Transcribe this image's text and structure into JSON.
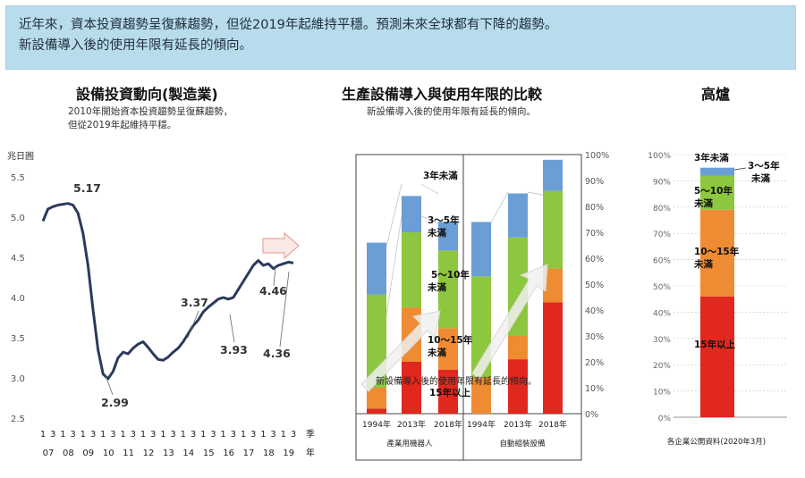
{
  "banner": {
    "line1": "近年來，資本投資趨勢呈復蘇趨勢，但從2019年起維持平穩。預測未來全球都有下降的趨勢。",
    "line2": "新設備導入後的使用年限有延長的傾向。"
  },
  "chart_data": [
    {
      "type": "line",
      "title": "設備投資動向(製造業)",
      "subtitle_lines": [
        "2010年開始資本投資趨勢呈復蘇趨勢，",
        "但從2019年起維持平穩。"
      ],
      "ylabel": "兆日圓",
      "xlabel": "季",
      "xlabel2": "年",
      "ylim": [
        2.5,
        5.5
      ],
      "yticks": [
        "5.5",
        "5.0",
        "4.5",
        "4.0",
        "3.5",
        "3.0",
        "2.5"
      ],
      "quarter_labels": [
        "1",
        "3",
        "1",
        "3",
        "1",
        "3",
        "1",
        "3",
        "1",
        "3",
        "1",
        "3",
        "1",
        "3",
        "1",
        "3",
        "1",
        "3",
        "1",
        "3",
        "1",
        "3",
        "1",
        "3",
        "1",
        "3"
      ],
      "year_labels": [
        "07",
        "08",
        "09",
        "10",
        "11",
        "12",
        "13",
        "14",
        "15",
        "16",
        "17",
        "18",
        "19"
      ],
      "x": [
        0,
        0.5,
        1,
        1.5,
        2,
        2.5,
        3,
        3.5,
        4,
        4.5,
        5,
        5.5,
        6,
        6.5,
        7,
        7.5,
        8,
        8.5,
        9,
        9.5,
        10,
        10.5,
        11,
        11.5,
        12,
        12.5,
        13,
        13.5,
        14,
        14.5,
        15,
        15.5,
        16,
        16.5,
        17,
        17.5,
        18,
        18.5,
        19,
        19.5,
        20,
        20.5,
        21,
        21.5,
        22,
        22.5,
        23,
        23.5,
        24,
        24.5,
        25
      ],
      "y": [
        4.95,
        5.1,
        5.13,
        5.15,
        5.16,
        5.17,
        5.15,
        5.05,
        4.8,
        4.4,
        3.85,
        3.35,
        3.05,
        2.99,
        3.08,
        3.25,
        3.32,
        3.3,
        3.37,
        3.42,
        3.45,
        3.38,
        3.3,
        3.23,
        3.22,
        3.26,
        3.32,
        3.37,
        3.45,
        3.55,
        3.65,
        3.72,
        3.82,
        3.88,
        3.93,
        3.98,
        4.0,
        3.98,
        4.0,
        4.1,
        4.2,
        4.3,
        4.4,
        4.46,
        4.4,
        4.42,
        4.36,
        4.4,
        4.42,
        4.44,
        4.43
      ],
      "annotations": [
        "5.17",
        "2.99",
        "3.37",
        "3.93",
        "4.46",
        "4.36"
      ],
      "line_color": "#2b3a5c"
    },
    {
      "type": "bar",
      "stacked": true,
      "title": "生產設備導入與使用年限的比較",
      "subtitle": "新設備導入後的使用年限有延長的傾向。",
      "categories": [
        "1994年",
        "2013年",
        "2018年",
        "1994年",
        "2013年",
        "2018年"
      ],
      "groups": [
        "產業用機器人",
        "自動組裝設備"
      ],
      "ylim": [
        0,
        100
      ],
      "yticks": [
        "100%",
        "90%",
        "80%",
        "70%",
        "60%",
        "50%",
        "40%",
        "30%",
        "20%",
        "10%",
        "0%"
      ],
      "series": [
        {
          "name": "15年以上",
          "color": "#e0281e",
          "values": [
            2,
            20,
            17,
            0,
            21,
            43
          ]
        },
        {
          "name": "10～15年未滿",
          "color": "#ef8b33",
          "values": [
            8,
            21,
            16,
            14,
            9,
            13
          ]
        },
        {
          "name": "5～10年未滿",
          "color": "#8dc63f",
          "values": [
            36,
            29,
            30,
            39,
            38,
            30
          ]
        },
        {
          "name": "3～5年未滿",
          "color": "#6b9ed6",
          "values": [
            20,
            14,
            11,
            21,
            17,
            12
          ]
        },
        {
          "name": "3年未滿",
          "color": "#4b7fbf",
          "values": [
            0,
            0,
            0,
            0,
            0,
            0
          ]
        }
      ],
      "segment_labels": [
        "3年未滿",
        "3～5年未滿",
        "5～10年未滿",
        "10～15年未滿",
        "15年以上"
      ],
      "arrow_note": "新設備導入後的使用年限有延長的傾向。"
    },
    {
      "type": "bar",
      "stacked": true,
      "title": "高爐",
      "source": "各企業公開資料(2020年3月)",
      "ylim": [
        0,
        100
      ],
      "yticks": [
        "100%",
        "90%",
        "80%",
        "70%",
        "60%",
        "50%",
        "40%",
        "30%",
        "20%",
        "10%",
        "0%"
      ],
      "series": [
        {
          "name": "15年以上",
          "color": "#e0281e",
          "values": [
            46
          ]
        },
        {
          "name": "10～15年未滿",
          "color": "#ef8b33",
          "values": [
            33
          ]
        },
        {
          "name": "5～10年未滿",
          "color": "#8dc63f",
          "values": [
            13
          ]
        },
        {
          "name": "3～5年未滿",
          "color": "#6b9ed6",
          "values": [
            3
          ]
        },
        {
          "name": "3年未滿",
          "color": "#4b7fbf",
          "values": [
            0
          ]
        }
      ],
      "segment_labels": [
        "3年未滿",
        "3～5年未滿",
        "5～10年未滿",
        "10～15年未滿",
        "15年以上"
      ]
    }
  ]
}
